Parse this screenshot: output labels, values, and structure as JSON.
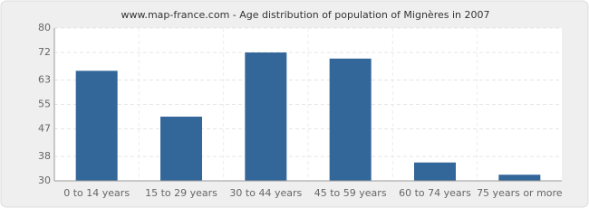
{
  "chart_data": {
    "type": "bar",
    "title": "www.map-france.com - Age distribution of population of Mignères in 2007",
    "categories": [
      "0 to 14 years",
      "15 to 29 years",
      "30 to 44 years",
      "45 to 59 years",
      "60 to 74 years",
      "75 years or more"
    ],
    "values": [
      66,
      51,
      72,
      70,
      36,
      32
    ],
    "color": "#336699",
    "ylim": [
      30,
      80
    ],
    "yticks": [
      30,
      38,
      47,
      55,
      63,
      72,
      80
    ],
    "grid": true
  }
}
